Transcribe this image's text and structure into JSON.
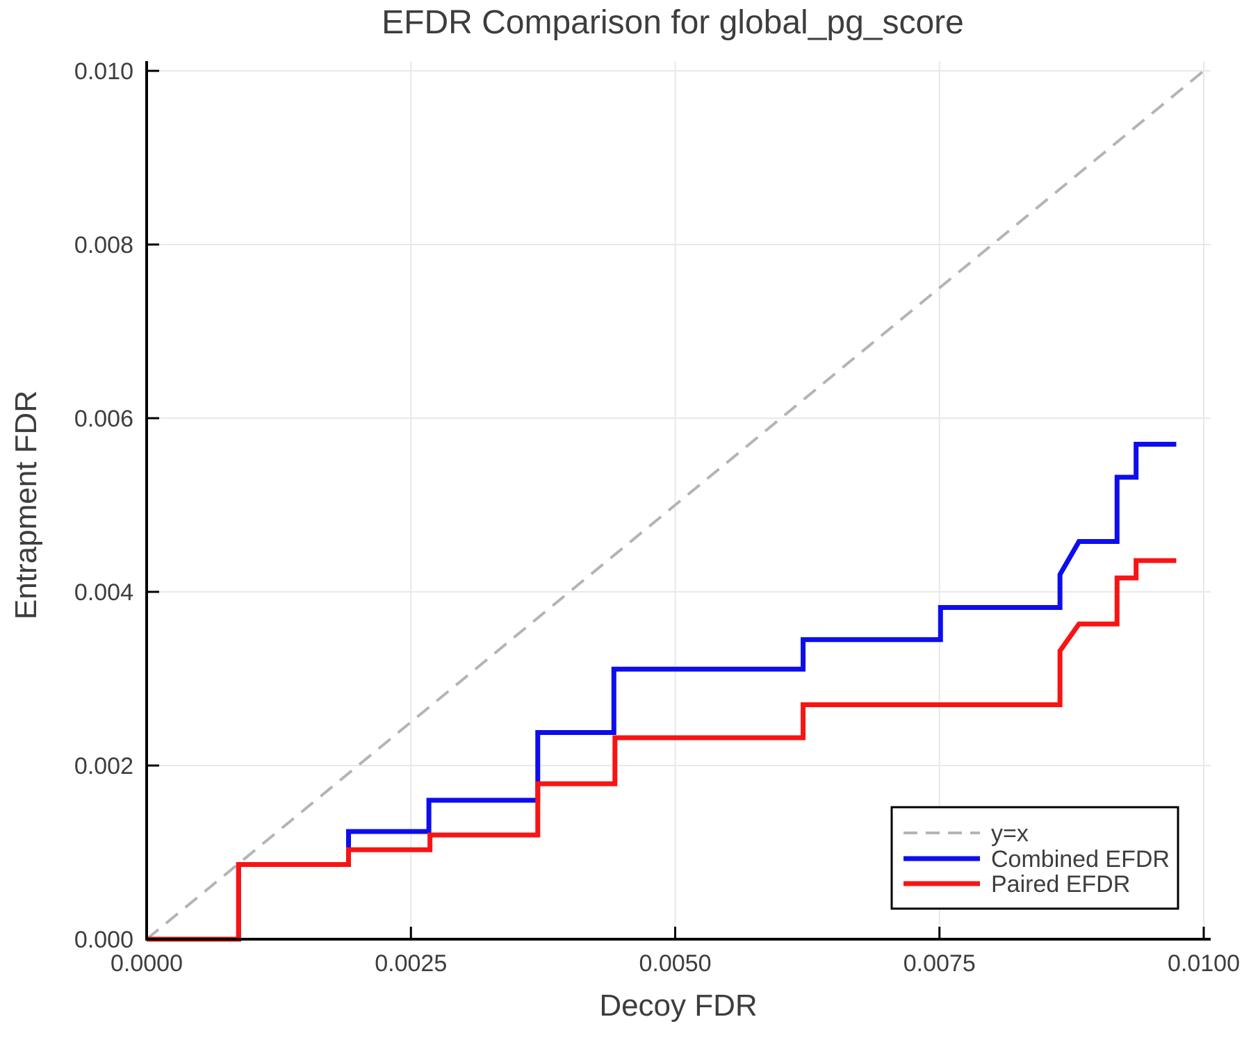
{
  "figure": {
    "title": "EFDR Comparison for global_pg_score",
    "background": "#ffffff",
    "text_color": "#3d3d3d",
    "spine_color": "#000000",
    "grid_color": "#e8e8e8"
  },
  "chart_data": {
    "type": "line",
    "title": "EFDR Comparison for global_pg_score",
    "xlabel": "Decoy FDR",
    "ylabel": "Entrapment FDR",
    "xlim": [
      0.0,
      0.010066
    ],
    "ylim": [
      0.0,
      0.010112
    ],
    "grid": true,
    "legend_position": "lower right",
    "xticks": {
      "values": [
        0.0,
        0.0025,
        0.005,
        0.0075,
        0.01
      ],
      "labels": [
        "0.0000",
        "0.0025",
        "0.0050",
        "0.0075",
        "0.0100"
      ]
    },
    "yticks": {
      "values": [
        0.0,
        0.002,
        0.004,
        0.006,
        0.008,
        0.01
      ],
      "labels": [
        "0.000",
        "0.002",
        "0.004",
        "0.006",
        "0.008",
        "0.010"
      ]
    },
    "legend": [
      "y=x",
      "Combined EFDR",
      "Paired EFDR"
    ],
    "series": [
      {
        "name": "y=x",
        "style": "dashed",
        "color": "#b4b4b4",
        "width": 4,
        "points": [
          [
            0.0,
            0.0
          ],
          [
            0.01,
            0.01
          ]
        ]
      },
      {
        "name": "Combined EFDR",
        "style": "solid",
        "color": "#0d0dee",
        "width": 7,
        "points": [
          [
            0.0,
            0.0
          ],
          [
            0.00087,
            0.0
          ],
          [
            0.00087,
            0.00086
          ],
          [
            0.00191,
            0.00086
          ],
          [
            0.00191,
            0.00124
          ],
          [
            0.00267,
            0.00124
          ],
          [
            0.00267,
            0.0016
          ],
          [
            0.0037,
            0.0016
          ],
          [
            0.0037,
            0.00238
          ],
          [
            0.00442,
            0.00238
          ],
          [
            0.00442,
            0.00311
          ],
          [
            0.00621,
            0.00311
          ],
          [
            0.00621,
            0.00345
          ],
          [
            0.00751,
            0.00345
          ],
          [
            0.00751,
            0.00382
          ],
          [
            0.00864,
            0.00382
          ],
          [
            0.00864,
            0.0042
          ],
          [
            0.00882,
            0.00458
          ],
          [
            0.00918,
            0.00458
          ],
          [
            0.00918,
            0.00532
          ],
          [
            0.00936,
            0.00532
          ],
          [
            0.00936,
            0.0057
          ],
          [
            0.00974,
            0.0057
          ]
        ]
      },
      {
        "name": "Paired EFDR",
        "style": "solid",
        "color": "#f81414",
        "width": 7,
        "points": [
          [
            0.0,
            0.0
          ],
          [
            0.00087,
            0.0
          ],
          [
            0.00087,
            0.00086
          ],
          [
            0.00191,
            0.00086
          ],
          [
            0.00191,
            0.00103
          ],
          [
            0.00268,
            0.00103
          ],
          [
            0.00268,
            0.0012
          ],
          [
            0.0037,
            0.0012
          ],
          [
            0.0037,
            0.00179
          ],
          [
            0.00443,
            0.00179
          ],
          [
            0.00443,
            0.00232
          ],
          [
            0.00621,
            0.00232
          ],
          [
            0.00621,
            0.0027
          ],
          [
            0.00864,
            0.0027
          ],
          [
            0.00864,
            0.00332
          ],
          [
            0.00882,
            0.00363
          ],
          [
            0.00918,
            0.00363
          ],
          [
            0.00918,
            0.00416
          ],
          [
            0.00936,
            0.00416
          ],
          [
            0.00936,
            0.00436
          ],
          [
            0.00974,
            0.00436
          ]
        ]
      }
    ]
  }
}
